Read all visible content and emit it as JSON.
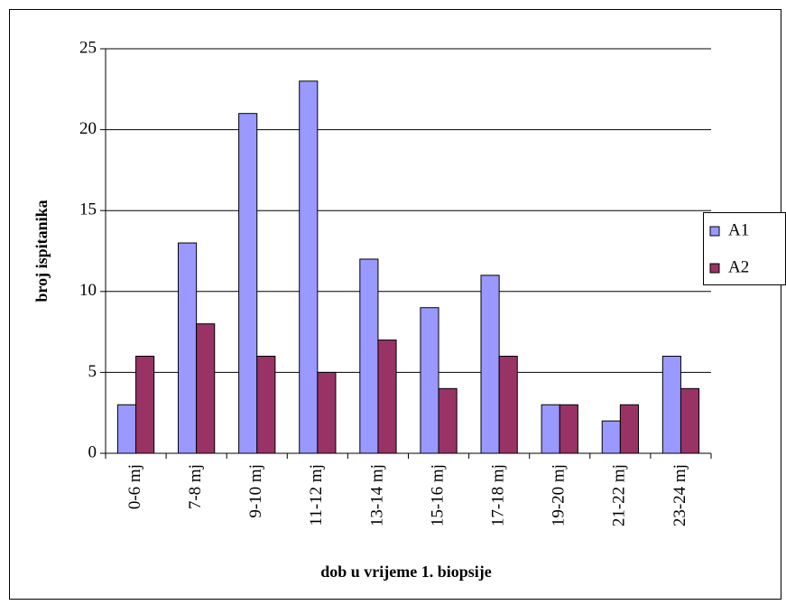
{
  "chart_data": {
    "type": "bar",
    "x_label": "dob u vrijeme 1. biopsije",
    "y_label": "broj ispitanika",
    "categories": [
      "0-6 mj",
      "7-8 mj",
      "9-10 mj",
      "11-12 mj",
      "13-14 mj",
      "15-16 mj",
      "17-18 mj",
      "19-20 mj",
      "21-22 mj",
      "23-24 mj"
    ],
    "series": [
      {
        "name": "A1",
        "color": "#9999ff",
        "values": [
          3,
          13,
          21,
          23,
          12,
          9,
          11,
          3,
          2,
          6
        ]
      },
      {
        "name": "A2",
        "color": "#993366",
        "values": [
          6,
          8,
          6,
          5,
          7,
          4,
          6,
          3,
          3,
          4
        ]
      }
    ],
    "ylim": [
      0,
      25
    ],
    "yticks": [
      0,
      5,
      10,
      15,
      20,
      25
    ],
    "grid": true,
    "legend": "right"
  }
}
